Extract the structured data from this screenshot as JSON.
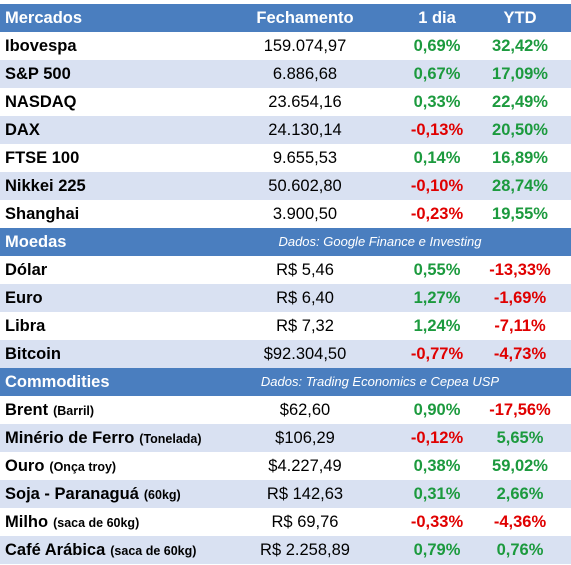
{
  "header": {
    "label": "Mercados",
    "col_close": "Fechamento",
    "col_day": "1 dia",
    "col_ytd": "YTD"
  },
  "mercados": [
    {
      "name": "Ibovespa",
      "close": "159.074,97",
      "day": "0,69%",
      "ytd": "32,42%"
    },
    {
      "name": "S&P 500",
      "close": "6.886,68",
      "day": "0,67%",
      "ytd": "17,09%"
    },
    {
      "name": "NASDAQ",
      "close": "23.654,16",
      "day": "0,33%",
      "ytd": "22,49%"
    },
    {
      "name": "DAX",
      "close": "24.130,14",
      "day": "-0,13%",
      "ytd": "20,50%"
    },
    {
      "name": "FTSE 100",
      "close": "9.655,53",
      "day": "0,14%",
      "ytd": "16,89%"
    },
    {
      "name": "Nikkei 225",
      "close": "50.602,80",
      "day": "-0,10%",
      "ytd": "28,74%"
    },
    {
      "name": "Shanghai",
      "close": "3.900,50",
      "day": "-0,23%",
      "ytd": "19,55%"
    }
  ],
  "moedas_header": {
    "label": "Moedas",
    "source": "Dados: Google Finance e Investing"
  },
  "moedas": [
    {
      "name": "Dólar",
      "close": "R$ 5,46",
      "day": "0,55%",
      "ytd": "-13,33%"
    },
    {
      "name": "Euro",
      "close": "R$ 6,40",
      "day": "1,27%",
      "ytd": "-1,69%"
    },
    {
      "name": "Libra",
      "close": "R$ 7,32",
      "day": "1,24%",
      "ytd": "-7,11%"
    },
    {
      "name": "Bitcoin",
      "close": "$92.304,50",
      "day": "-0,77%",
      "ytd": "-4,73%"
    }
  ],
  "commodities_header": {
    "label": "Commodities",
    "source": "Dados: Trading Economics e Cepea USP"
  },
  "commodities": [
    {
      "name": "Brent",
      "unit": "(Barril)",
      "close": "$62,60",
      "day": "0,90%",
      "ytd": "-17,56%"
    },
    {
      "name": "Minério de Ferro",
      "unit": "(Tonelada)",
      "close": "$106,29",
      "day": "-0,12%",
      "ytd": "5,65%"
    },
    {
      "name": "Ouro",
      "unit": "(Onça troy)",
      "close": "$4.227,49",
      "day": "0,38%",
      "ytd": "59,02%"
    },
    {
      "name": "Soja - Paranaguá",
      "unit": "(60kg)",
      "close": "R$ 142,63",
      "day": "0,31%",
      "ytd": "2,66%"
    },
    {
      "name": "Milho",
      "unit": "(saca de 60kg)",
      "close": "R$ 69,76",
      "day": "-0,33%",
      "ytd": "-4,36%"
    },
    {
      "name": "Café Arábica",
      "unit": "(saca de 60kg)",
      "close": "R$ 2.258,89",
      "day": "0,79%",
      "ytd": "0,76%"
    }
  ],
  "colors": {
    "header_bg": "#4a7ebf",
    "stripe_bg": "#d9e1f2",
    "positive": "#1c9a3e",
    "negative": "#e00000"
  }
}
